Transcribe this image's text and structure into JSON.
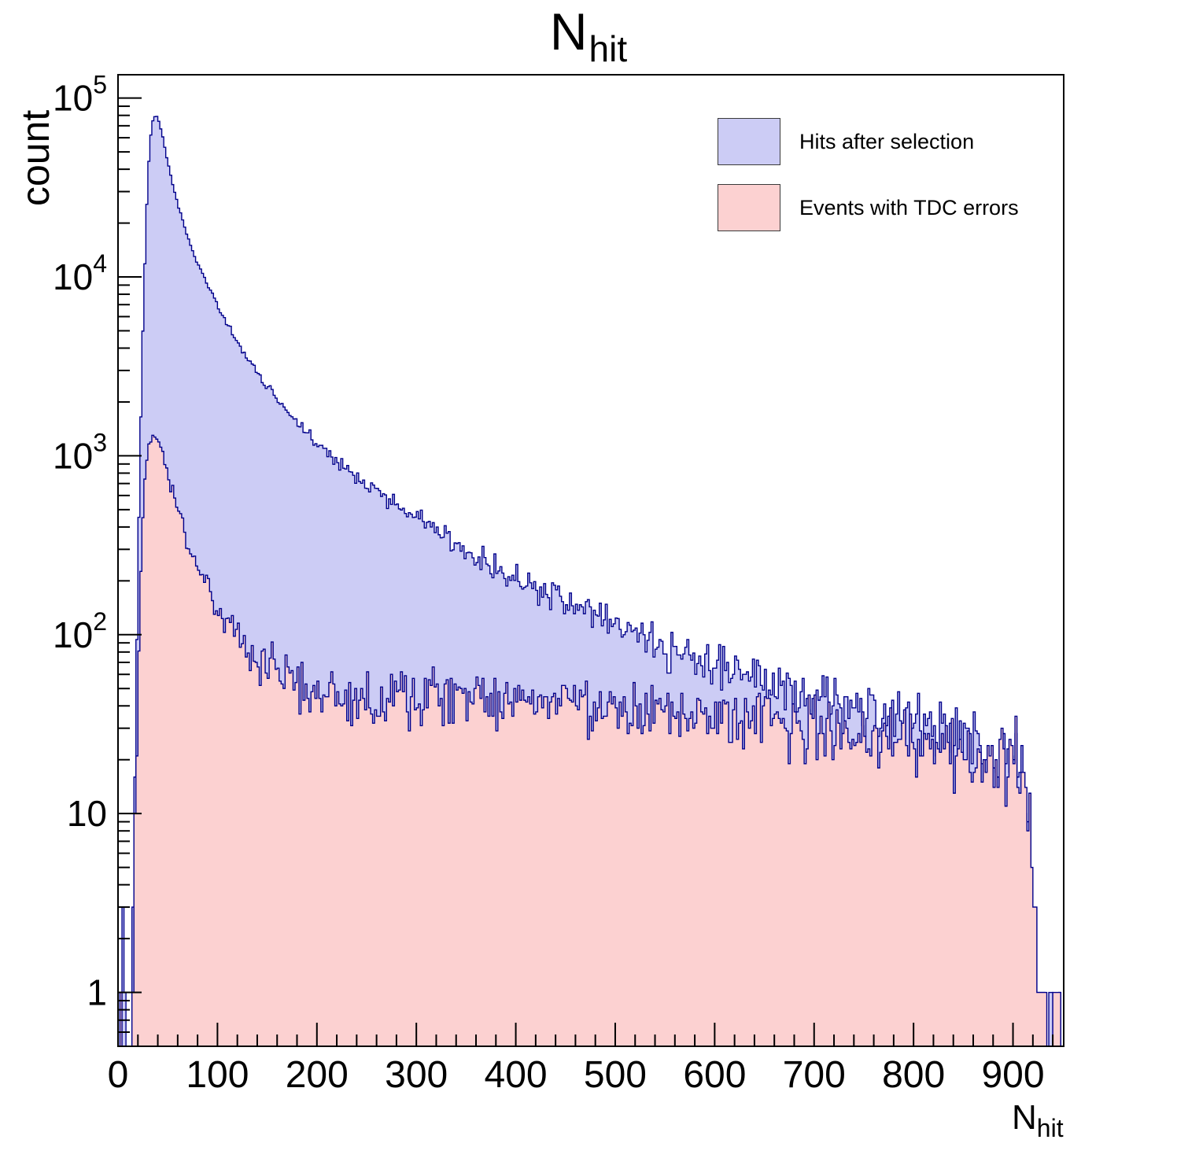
{
  "page": {
    "background": "#ffffff"
  },
  "chart_data": {
    "type": "histogram",
    "title": "N_hit",
    "title_main": "N",
    "title_sub": "hit",
    "xlabel": "N_hit",
    "xlabel_main": "N",
    "xlabel_sub": "hit",
    "ylabel": "count",
    "x_range": [
      0,
      951
    ],
    "y_range_log": [
      0.5,
      135000
    ],
    "bin_width": 2,
    "grid": false,
    "legend_position": "top-right",
    "x_major_ticks": [
      0,
      100,
      200,
      300,
      400,
      500,
      600,
      700,
      800,
      900
    ],
    "x_minor_step": 20,
    "y_decade_ticks": [
      {
        "value": 1,
        "base": "1",
        "exp": ""
      },
      {
        "value": 10,
        "base": "10",
        "exp": ""
      },
      {
        "value": 100,
        "base": "10",
        "exp": "2"
      },
      {
        "value": 1000,
        "base": "10",
        "exp": "3"
      },
      {
        "value": 10000,
        "base": "10",
        "exp": "4"
      },
      {
        "value": 100000,
        "base": "10",
        "exp": "5"
      }
    ],
    "axis_color": "#000000",
    "series": [
      {
        "name": "Hits after selection",
        "fill_color": "#ccccf5",
        "line_color": "#00008b",
        "seed": 20240513,
        "noise_k": 1.2,
        "anchors": [
          [
            2,
            0
          ],
          [
            4,
            3
          ],
          [
            6,
            1
          ],
          [
            8,
            0
          ],
          [
            13,
            0
          ],
          [
            15,
            2
          ],
          [
            16,
            8
          ],
          [
            18,
            40
          ],
          [
            20,
            200
          ],
          [
            22,
            900
          ],
          [
            24,
            3000
          ],
          [
            26,
            8000
          ],
          [
            28,
            18000
          ],
          [
            30,
            35000
          ],
          [
            32,
            55000
          ],
          [
            34,
            70000
          ],
          [
            36,
            78000
          ],
          [
            38,
            80000
          ],
          [
            40,
            77000
          ],
          [
            42,
            71000
          ],
          [
            44,
            64000
          ],
          [
            46,
            57000
          ],
          [
            48,
            50000
          ],
          [
            50,
            44000
          ],
          [
            55,
            33000
          ],
          [
            60,
            25500
          ],
          [
            65,
            20500
          ],
          [
            70,
            16800
          ],
          [
            75,
            14000
          ],
          [
            80,
            11900
          ],
          [
            85,
            10300
          ],
          [
            90,
            9000
          ],
          [
            95,
            7900
          ],
          [
            100,
            6900
          ],
          [
            110,
            5400
          ],
          [
            120,
            4300
          ],
          [
            130,
            3550
          ],
          [
            140,
            2950
          ],
          [
            150,
            2450
          ],
          [
            160,
            2080
          ],
          [
            170,
            1780
          ],
          [
            180,
            1540
          ],
          [
            190,
            1340
          ],
          [
            200,
            1180
          ],
          [
            210,
            1040
          ],
          [
            220,
            930
          ],
          [
            230,
            840
          ],
          [
            240,
            760
          ],
          [
            250,
            690
          ],
          [
            260,
            630
          ],
          [
            270,
            575
          ],
          [
            280,
            525
          ],
          [
            290,
            490
          ],
          [
            300,
            460
          ],
          [
            310,
            425
          ],
          [
            320,
            392
          ],
          [
            330,
            360
          ],
          [
            340,
            330
          ],
          [
            350,
            303
          ],
          [
            360,
            280
          ],
          [
            370,
            260
          ],
          [
            380,
            242
          ],
          [
            390,
            226
          ],
          [
            400,
            212
          ],
          [
            420,
            186
          ],
          [
            440,
            163
          ],
          [
            460,
            143
          ],
          [
            480,
            127
          ],
          [
            500,
            113
          ],
          [
            520,
            101
          ],
          [
            540,
            91
          ],
          [
            560,
            82
          ],
          [
            580,
            74
          ],
          [
            600,
            67
          ],
          [
            620,
            61
          ],
          [
            640,
            56
          ],
          [
            660,
            52
          ],
          [
            680,
            48
          ],
          [
            700,
            45
          ],
          [
            720,
            42
          ],
          [
            740,
            39
          ],
          [
            760,
            36
          ],
          [
            780,
            33
          ],
          [
            800,
            30
          ],
          [
            820,
            28
          ],
          [
            840,
            25
          ],
          [
            860,
            23
          ],
          [
            880,
            21
          ],
          [
            900,
            18
          ],
          [
            908,
            16
          ],
          [
            914,
            13
          ],
          [
            918,
            8
          ],
          [
            922,
            3
          ],
          [
            926,
            1
          ],
          [
            930,
            1
          ],
          [
            934,
            0
          ],
          [
            938,
            1
          ],
          [
            943,
            0
          ],
          [
            947,
            1
          ],
          [
            951,
            0
          ]
        ]
      },
      {
        "name": "Events with TDC errors",
        "fill_color": "#fcd1d1",
        "line_color": "#00008b",
        "seed": 777777,
        "noise_k": 1.2,
        "anchors": [
          [
            2,
            0
          ],
          [
            4,
            1
          ],
          [
            7,
            0
          ],
          [
            13,
            0
          ],
          [
            15,
            1
          ],
          [
            16,
            4
          ],
          [
            18,
            15
          ],
          [
            20,
            50
          ],
          [
            22,
            150
          ],
          [
            24,
            350
          ],
          [
            26,
            600
          ],
          [
            28,
            860
          ],
          [
            30,
            1060
          ],
          [
            32,
            1200
          ],
          [
            34,
            1280
          ],
          [
            36,
            1300
          ],
          [
            38,
            1285
          ],
          [
            40,
            1235
          ],
          [
            42,
            1160
          ],
          [
            44,
            1060
          ],
          [
            46,
            960
          ],
          [
            48,
            870
          ],
          [
            50,
            790
          ],
          [
            55,
            620
          ],
          [
            60,
            500
          ],
          [
            65,
            410
          ],
          [
            70,
            340
          ],
          [
            75,
            286
          ],
          [
            80,
            243
          ],
          [
            85,
            209
          ],
          [
            90,
            181
          ],
          [
            95,
            158
          ],
          [
            100,
            139
          ],
          [
            110,
            112
          ],
          [
            120,
            94
          ],
          [
            130,
            81
          ],
          [
            140,
            72
          ],
          [
            150,
            65
          ],
          [
            160,
            60
          ],
          [
            170,
            56
          ],
          [
            180,
            53
          ],
          [
            190,
            51
          ],
          [
            200,
            49
          ],
          [
            220,
            46
          ],
          [
            240,
            44
          ],
          [
            260,
            43
          ],
          [
            280,
            43
          ],
          [
            300,
            43
          ],
          [
            320,
            43
          ],
          [
            340,
            44
          ],
          [
            360,
            45
          ],
          [
            380,
            45
          ],
          [
            400,
            45
          ],
          [
            420,
            44
          ],
          [
            440,
            43
          ],
          [
            460,
            42
          ],
          [
            480,
            41
          ],
          [
            500,
            40
          ],
          [
            520,
            39
          ],
          [
            540,
            38
          ],
          [
            560,
            37
          ],
          [
            580,
            36
          ],
          [
            600,
            35
          ],
          [
            620,
            34
          ],
          [
            640,
            33
          ],
          [
            660,
            32
          ],
          [
            680,
            31
          ],
          [
            700,
            30
          ],
          [
            720,
            29
          ],
          [
            740,
            28
          ],
          [
            760,
            27
          ],
          [
            780,
            26
          ],
          [
            800,
            25
          ],
          [
            820,
            24
          ],
          [
            840,
            23
          ],
          [
            860,
            21
          ],
          [
            880,
            20
          ],
          [
            900,
            18
          ],
          [
            908,
            15
          ],
          [
            914,
            12
          ],
          [
            918,
            7
          ],
          [
            922,
            3
          ],
          [
            926,
            1
          ],
          [
            932,
            1
          ],
          [
            937,
            0
          ],
          [
            943,
            1
          ],
          [
            951,
            0
          ]
        ]
      }
    ]
  }
}
